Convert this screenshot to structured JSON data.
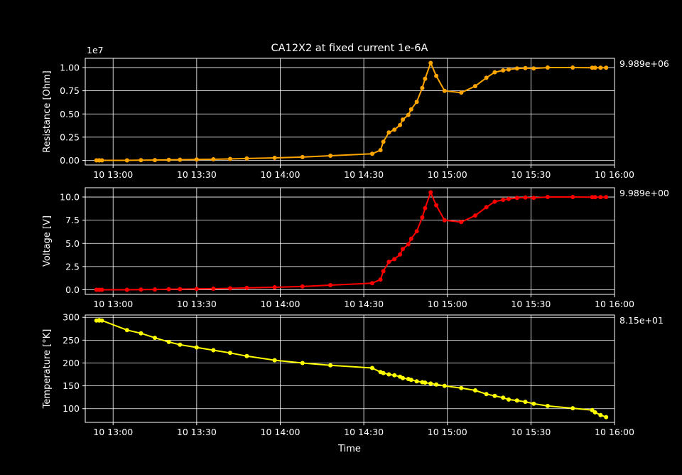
{
  "chart_data": {
    "type": "line",
    "title": "CA12X2 at fixed current 1e-6A",
    "xlabel": "Time",
    "x_range": [
      "10 12:50",
      "10 16:00"
    ],
    "x_ticks": [
      "10 13:00",
      "10 13:30",
      "10 14:00",
      "10 14:30",
      "10 15:00",
      "10 15:30",
      "10 16:00"
    ],
    "grid": true,
    "background": "#000000",
    "times": [
      "12:54",
      "12:55",
      "12:55",
      "12:56",
      "13:05",
      "13:10",
      "13:15",
      "13:20",
      "13:24",
      "13:30",
      "13:36",
      "13:42",
      "13:48",
      "13:58",
      "14:08",
      "14:18",
      "14:33",
      "14:36",
      "14:37",
      "14:39",
      "14:41",
      "14:43",
      "14:44",
      "14:46",
      "14:47",
      "14:49",
      "14:51",
      "14:52",
      "14:54",
      "14:56",
      "14:59",
      "15:05",
      "15:10",
      "15:14",
      "15:17",
      "15:20",
      "15:22",
      "15:25",
      "15:28",
      "15:31",
      "15:36",
      "15:45",
      "15:52",
      "15:53",
      "15:55",
      "15:57"
    ],
    "panels": [
      {
        "name": "resistance",
        "ylabel": "Resistance [Ohm]",
        "ylim": [
          -0.05,
          1.1
        ],
        "yticks": [
          "0.00",
          "0.25",
          "0.50",
          "0.75",
          "1.00"
        ],
        "ytick_values": [
          0,
          0.25,
          0.5,
          0.75,
          1.0
        ],
        "offset_label": "1e7",
        "last_value_label": "9.989e+06",
        "color": "#ffa500",
        "values": [
          0.0,
          0.0,
          0.0,
          0.0,
          0.0,
          0.002,
          0.003,
          0.005,
          0.007,
          0.009,
          0.011,
          0.015,
          0.02,
          0.027,
          0.035,
          0.05,
          0.07,
          0.11,
          0.2,
          0.3,
          0.33,
          0.38,
          0.44,
          0.49,
          0.55,
          0.63,
          0.78,
          0.88,
          1.05,
          0.91,
          0.75,
          0.73,
          0.8,
          0.89,
          0.95,
          0.97,
          0.98,
          0.99,
          0.995,
          0.99,
          1.0,
          1.0,
          0.999,
          0.999,
          0.999,
          0.999
        ]
      },
      {
        "name": "voltage",
        "ylabel": "Voltage [V]",
        "ylim": [
          -0.5,
          11.0
        ],
        "yticks": [
          "0.0",
          "2.5",
          "5.0",
          "7.5",
          "10.0"
        ],
        "ytick_values": [
          0,
          2.5,
          5.0,
          7.5,
          10.0
        ],
        "last_value_label": "9.989e+00",
        "color": "#ff0000",
        "values": [
          0.0,
          0.0,
          0.0,
          0.0,
          0.0,
          0.02,
          0.03,
          0.05,
          0.07,
          0.09,
          0.11,
          0.15,
          0.2,
          0.27,
          0.35,
          0.5,
          0.7,
          1.1,
          2.0,
          3.0,
          3.3,
          3.8,
          4.4,
          4.9,
          5.5,
          6.3,
          7.8,
          8.8,
          10.5,
          9.1,
          7.5,
          7.3,
          8.0,
          8.9,
          9.5,
          9.7,
          9.8,
          9.9,
          9.95,
          9.9,
          10.0,
          10.0,
          9.99,
          9.99,
          9.99,
          9.989
        ]
      },
      {
        "name": "temperature",
        "ylabel": "Temperature [°K]",
        "ylim": [
          70,
          305
        ],
        "yticks": [
          "100",
          "150",
          "200",
          "250",
          "300"
        ],
        "ytick_values": [
          100,
          150,
          200,
          250,
          300
        ],
        "last_value_label": "8.15e+01",
        "color": "#ffff00",
        "values": [
          293,
          293,
          294,
          293,
          272,
          265,
          255,
          246,
          240,
          234,
          228,
          222,
          215,
          206,
          200,
          195,
          189,
          180,
          178,
          175,
          173,
          170,
          167,
          165,
          163,
          160,
          158,
          157,
          155,
          153,
          150,
          145,
          140,
          132,
          128,
          124,
          120,
          118,
          115,
          111,
          106,
          101,
          97,
          92,
          86,
          81.5
        ]
      }
    ]
  }
}
